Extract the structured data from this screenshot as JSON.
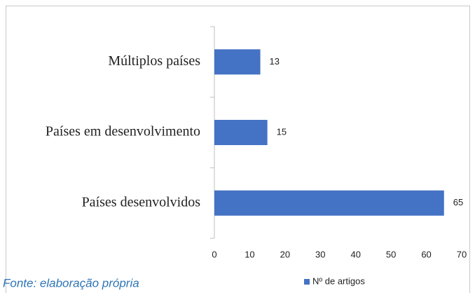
{
  "chart_data": {
    "type": "hbar",
    "categories": [
      "Múltiplos países",
      "Países em desenvolvimento",
      "Países desenvolvidos"
    ],
    "series": [
      {
        "name": "Nº de artigos",
        "color": "#4472c4",
        "values": [
          13,
          15,
          65
        ]
      }
    ],
    "xlim": [
      0,
      70
    ],
    "xticks": [
      0,
      10,
      20,
      30,
      40,
      50,
      60,
      70
    ],
    "legend": "bottom",
    "source": "Fonte: elaboração própria"
  }
}
